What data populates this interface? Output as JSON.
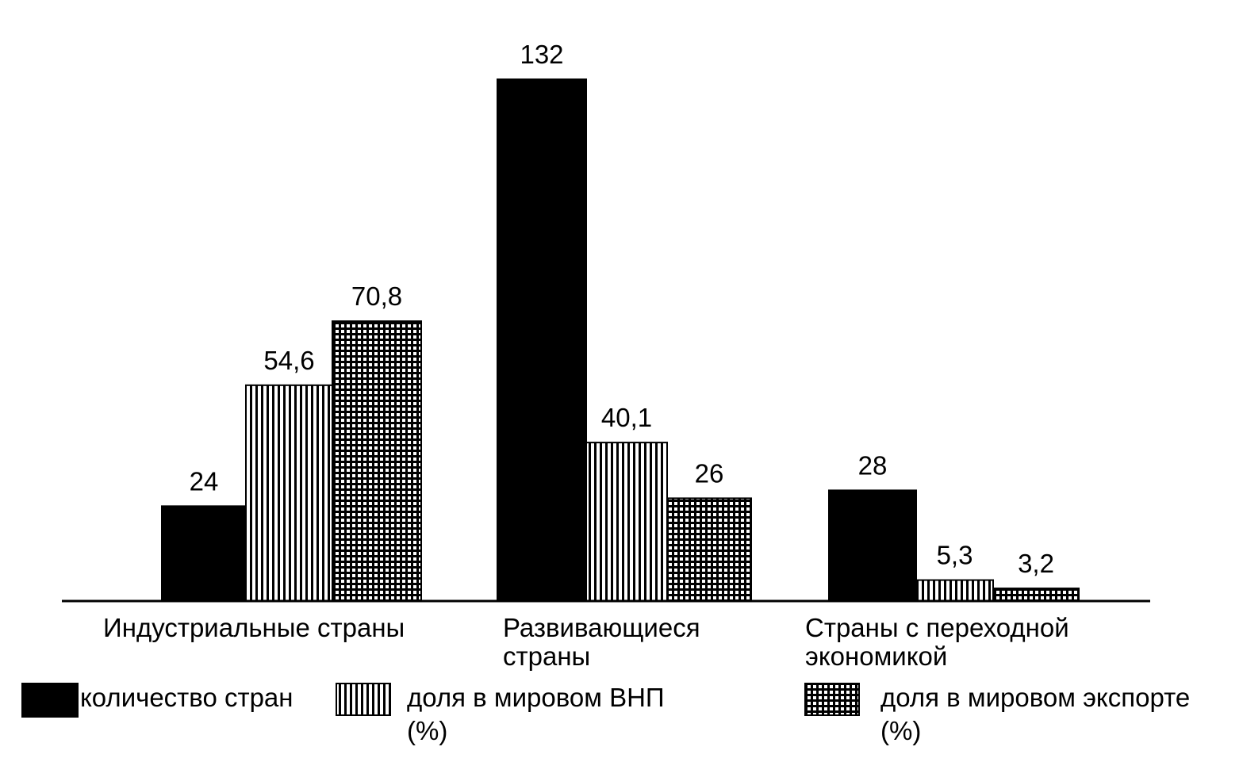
{
  "chart_data": {
    "type": "bar",
    "categories": [
      [
        "Индустриальные страны"
      ],
      [
        "Развивающиеся",
        "страны"
      ],
      [
        "Страны с переходной",
        "экономикой"
      ]
    ],
    "series": [
      {
        "name": "количество стран",
        "pattern": "solid",
        "values": [
          24,
          132,
          28
        ],
        "labels": [
          "24",
          "132",
          "28"
        ]
      },
      {
        "name_lines": [
          "доля в мировом ВНП",
          "(%)"
        ],
        "pattern": "vertical-lines",
        "values": [
          54.6,
          40.1,
          5.3
        ],
        "labels": [
          "54,6",
          "40,1",
          "5,3"
        ]
      },
      {
        "name_lines": [
          "доля в мировом экспорте",
          "(%)"
        ],
        "pattern": "grid",
        "values": [
          70.8,
          26,
          3.2
        ],
        "labels": [
          "70,8",
          "26",
          "3,2"
        ]
      }
    ],
    "title": "",
    "xlabel": "",
    "ylabel": "",
    "ylim": [
      0,
      140
    ],
    "grid": false,
    "legend_position": "bottom",
    "colors": {
      "bar": "#000000",
      "background": "#ffffff"
    }
  }
}
